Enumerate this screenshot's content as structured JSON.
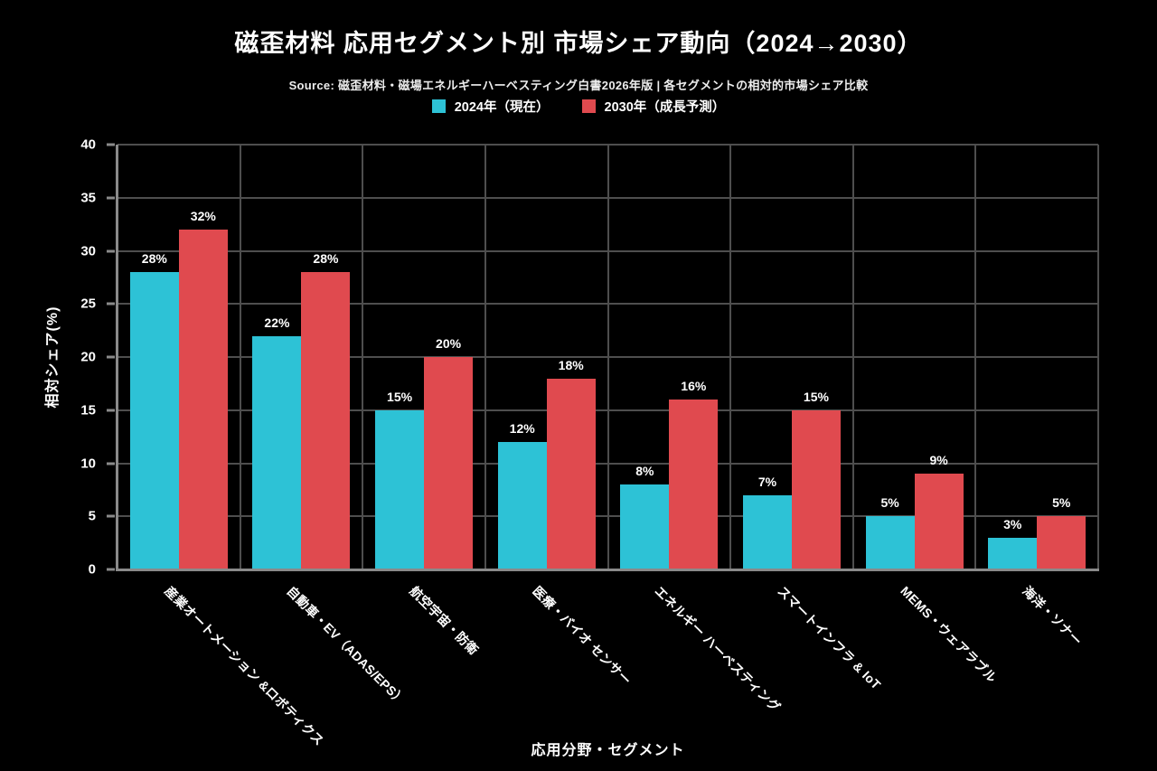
{
  "title": "磁歪材料 応用セグメント別 市場シェア動向（2024→2030）",
  "subtitle": "Source: 磁歪材料・磁場エネルギーハーベスティング白書2026年版 | 各セグメントの相対的市場シェア比較",
  "colors": {
    "background": "#000000",
    "series_2024": "#2DC2D6",
    "series_2030": "#E04A4F",
    "grid": "#4e4e4e",
    "axis": "#8a8a8a",
    "text": "#ffffff"
  },
  "legend": [
    {
      "label": "2024年（現在）",
      "color": "#2DC2D6"
    },
    {
      "label": "2030年（成長予測）",
      "color": "#E04A4F"
    }
  ],
  "chart_data": {
    "type": "bar",
    "title": "磁歪材料 応用セグメント別 市場シェア動向（2024→2030）",
    "subtitle": "Source: 磁歪材料・磁場エネルギーハーベスティング白書2026年版 | 各セグメントの相対的市場シェア比較",
    "xlabel": "応用分野・セグメント",
    "ylabel": "相対シェア(%)",
    "ylim": [
      0,
      40
    ],
    "yticks": [
      0,
      5,
      10,
      15,
      20,
      25,
      30,
      35,
      40
    ],
    "grid": true,
    "legend_position": "top",
    "categories": [
      "産業オートメーション &ロボティクス",
      "自動車・EV（ADAS/EPS）",
      "航空宇宙・防衛",
      "医療・バイオ センサー",
      "エネルギー ハーベスティング",
      "スマートインフラ & IoT",
      "MEMS・ウェアラブル",
      "海洋・ソナー"
    ],
    "series": [
      {
        "name": "2024年（現在）",
        "color": "#2DC2D6",
        "values": [
          28,
          22,
          15,
          12,
          8,
          7,
          5,
          3
        ]
      },
      {
        "name": "2030年（成長予測）",
        "color": "#E04A4F",
        "values": [
          32,
          28,
          20,
          18,
          16,
          15,
          9,
          5
        ]
      }
    ],
    "bar_labels": true,
    "label_format": "{v}%"
  }
}
